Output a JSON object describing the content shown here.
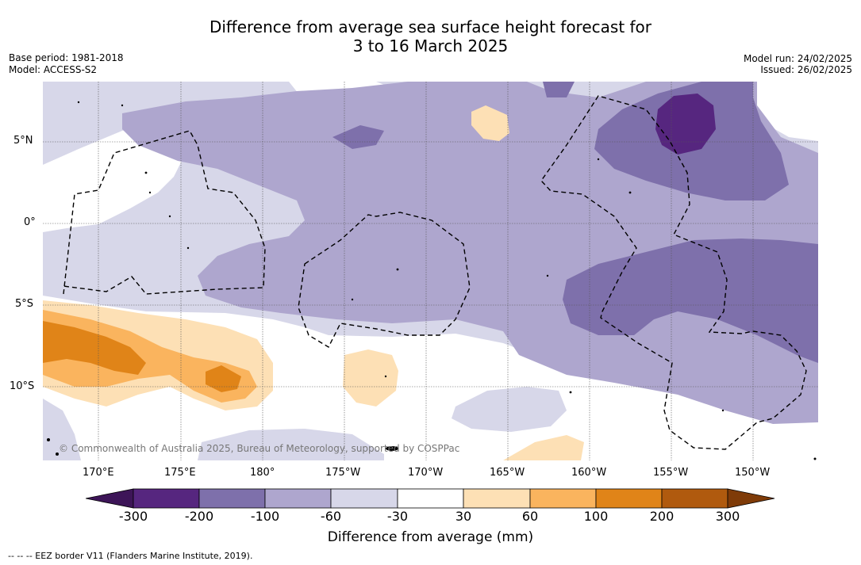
{
  "title": {
    "line1": "Difference from average sea surface height forecast for",
    "line2": "3 to 16 March 2025"
  },
  "meta": {
    "base_period": "Base period: 1981-2018",
    "model": "Model: ACCESS-S2",
    "model_run": "Model run: 24/02/2025",
    "issued": "Issued: 26/02/2025"
  },
  "map": {
    "lat_labels": [
      "5°N",
      "0°",
      "5°S",
      "10°S"
    ],
    "lon_labels": [
      "170°E",
      "175°E",
      "180°",
      "175°W",
      "170°W",
      "165°W",
      "160°W",
      "155°W",
      "150°W"
    ],
    "credit": "© Commonwealth of Australia 2025, Bureau of Meteorology, supported by COSPPac",
    "colors": {
      "neg300": "#3d1558",
      "neg200_300": "#56267f",
      "neg100_200": "#7e70ab",
      "neg60_100": "#aea6ce",
      "neg30_60": "#d7d7e9",
      "neutral": "#ffffff",
      "pos30_60": "#fde0b5",
      "pos60_100": "#fab45e",
      "pos100_200": "#e08418",
      "pos200_300": "#b05a0e",
      "pos300": "#7f3b08"
    }
  },
  "colorbar": {
    "ticks": [
      "-300",
      "-200",
      "-100",
      "-60",
      "-30",
      "30",
      "60",
      "100",
      "200",
      "300"
    ],
    "label": "Difference from average (mm)"
  },
  "legend": {
    "eez": "--  --  -- EEZ border V11 (Flanders Marine Institute, 2019)."
  }
}
